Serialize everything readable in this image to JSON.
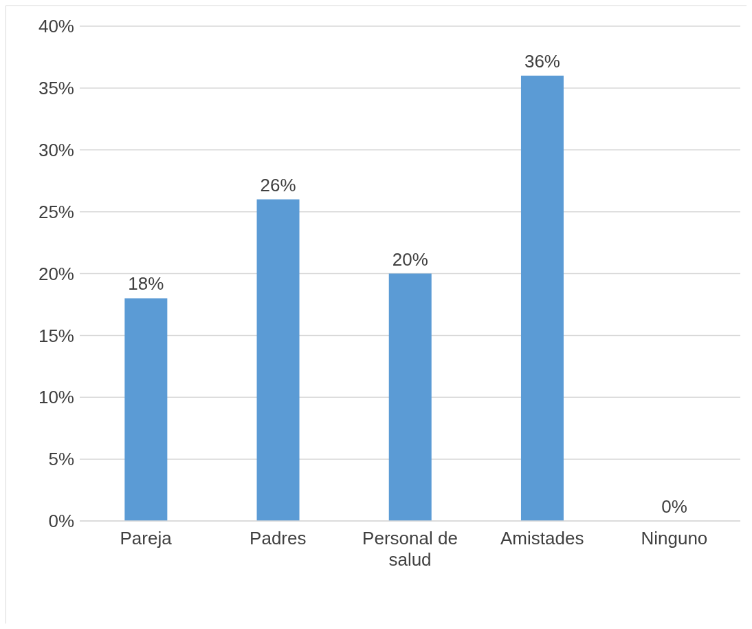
{
  "chart_data": {
    "type": "bar",
    "categories": [
      "Pareja",
      "Padres",
      "Personal de salud",
      "Amistades",
      "Ninguno"
    ],
    "values": [
      18,
      26,
      20,
      36,
      0
    ],
    "value_labels": [
      "18%",
      "26%",
      "20%",
      "36%",
      "0%"
    ],
    "color": "#5b9bd5",
    "ylim": [
      0,
      40
    ],
    "yticks": [
      {
        "value": 0,
        "label": "0%"
      },
      {
        "value": 5,
        "label": "5%"
      },
      {
        "value": 10,
        "label": "10%"
      },
      {
        "value": 15,
        "label": "15%"
      },
      {
        "value": 20,
        "label": "20%"
      },
      {
        "value": 25,
        "label": "25%"
      },
      {
        "value": 30,
        "label": "30%"
      },
      {
        "value": 35,
        "label": "35%"
      },
      {
        "value": 40,
        "label": "40%"
      }
    ],
    "grid": "y",
    "legend": false
  }
}
